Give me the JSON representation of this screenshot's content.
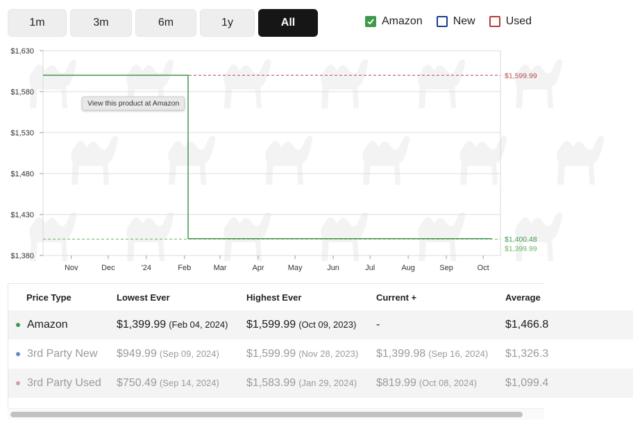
{
  "range": {
    "buttons": [
      {
        "label": "1m",
        "active": false
      },
      {
        "label": "3m",
        "active": false
      },
      {
        "label": "6m",
        "active": false
      },
      {
        "label": "1y",
        "active": false
      },
      {
        "label": "All",
        "active": true
      }
    ]
  },
  "legend": {
    "items": [
      {
        "label": "Amazon",
        "checked": true,
        "color": "#3d9a4a"
      },
      {
        "label": "New",
        "checked": false,
        "color": "#1d3a8f"
      },
      {
        "label": "Used",
        "checked": false,
        "color": "#b23a3a"
      }
    ]
  },
  "tooltip": {
    "text": "View this product at Amazon"
  },
  "chart_data": {
    "type": "line",
    "y_ticks": [
      "$1,630",
      "$1,580",
      "$1,530",
      "$1,480",
      "$1,430",
      "$1,380"
    ],
    "ylim": [
      1380,
      1630
    ],
    "x_ticks": [
      "Nov",
      "Dec",
      "'24",
      "Feb",
      "Mar",
      "Apr",
      "May",
      "Jun",
      "Jul",
      "Aug",
      "Sep",
      "Oct"
    ],
    "grid": true,
    "series": [
      {
        "name": "Amazon",
        "color": "#3d9a4a",
        "points": [
          [
            "2023-10-09",
            1599.99
          ],
          [
            "2024-02-04",
            1599.99
          ],
          [
            "2024-02-04",
            1400.48
          ],
          [
            "2024-10-08",
            1400.48
          ]
        ]
      }
    ],
    "reference_lines": [
      {
        "value": 1599.99,
        "label": "$1,599.99",
        "color": "#b84a4a",
        "style": "dashed"
      },
      {
        "value": 1399.99,
        "label": "$1,399.99",
        "color": "#6bb36b",
        "style": "dashed"
      }
    ],
    "end_labels": [
      {
        "value": 1400.48,
        "label": "$1,400.48",
        "color": "#3d9a4a"
      }
    ]
  },
  "table": {
    "headers": [
      "Price Type",
      "Lowest Ever",
      "Highest Ever",
      "Current +",
      "Average"
    ],
    "rows": [
      {
        "name": "Amazon",
        "dot_color": "#3d9a4a",
        "muted": false,
        "lowest_price": "$1,399.99",
        "lowest_date": "(Feb 04, 2024)",
        "highest_price": "$1,599.99",
        "highest_date": "(Oct 09, 2023)",
        "current_price": "-",
        "current_date": "",
        "average": "$1,466.8"
      },
      {
        "name": "3rd Party New",
        "dot_color": "#6a86cc",
        "muted": true,
        "lowest_price": "$949.99",
        "lowest_date": "(Sep 09, 2024)",
        "highest_price": "$1,599.99",
        "highest_date": "(Nov 28, 2023)",
        "current_price": "$1,399.98",
        "current_date": "(Sep 16, 2024)",
        "average": "$1,326.3"
      },
      {
        "name": "3rd Party Used",
        "dot_color": "#d6a0a0",
        "muted": true,
        "lowest_price": "$750.49",
        "lowest_date": "(Sep 14, 2024)",
        "highest_price": "$1,583.99",
        "highest_date": "(Jan 29, 2024)",
        "current_price": "$819.99",
        "current_date": "(Oct 08, 2024)",
        "average": "$1,099.4"
      }
    ]
  }
}
